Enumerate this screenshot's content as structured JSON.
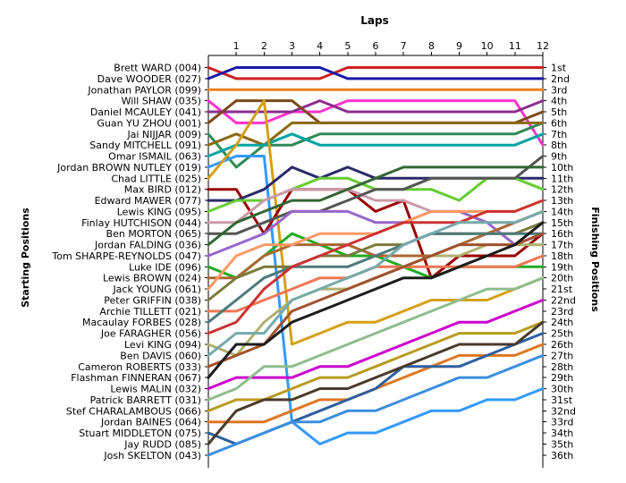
{
  "chart_data": {
    "type": "line",
    "title": "",
    "xlabel": "Laps",
    "ylabel_left": "Starting Positions",
    "ylabel_right": "Finishing Positions",
    "x_ticks": [
      "1",
      "2",
      "3",
      "4",
      "5",
      "6",
      "7",
      "8",
      "9",
      "10",
      "11",
      "12"
    ],
    "xlim": [
      0,
      12
    ],
    "ylim": [
      1,
      36
    ],
    "grid": false,
    "starting_labels": [
      "Brett WARD (004)",
      "Dave WOODER (027)",
      "Jonathan PAYLOR (099)",
      "Will SHAW (035)",
      "Daniel MCAULEY (041)",
      "Guan YU ZHOU (001)",
      "Jai NIJJAR (009)",
      "Sandy MITCHELL (091)",
      "Omar ISMAIL (063)",
      "Jordan BROWN NUTLEY (019)",
      "Chad LITTLE (025)",
      "Max BIRD (012)",
      "Edward MAWER (077)",
      "Lewis KING (095)",
      "Finlay HUTCHISON (044)",
      "Ben MORTON (065)",
      "Jordan FALDING (036)",
      "Tom SHARPE-REYNOLDS (047)",
      "Luke IDE (096)",
      "Lewis BROWN (024)",
      "Jack YOUNG (061)",
      "Peter GRIFFIN (038)",
      "Archie TILLETT (021)",
      "Macaulay FORBES (028)",
      "Joe FARAGHER (056)",
      "Levi KING (094)",
      "Ben DAVIS (060)",
      "Cameron ROBERTS (033)",
      "Flashman FINNERAN (067)",
      "Lewis MALIN (032)",
      "Patrick BARRETT (031)",
      "Stef CHARALAMBOUS (066)",
      "Jordan BAINES (064)",
      "Stuart MIDDLETON (075)",
      "Jay RUDD (085)",
      "Josh SKELTON (043)"
    ],
    "finishing_labels": [
      "1st",
      "2nd",
      "3rd",
      "4th",
      "5th",
      "6th",
      "7th",
      "8th",
      "9th",
      "10th",
      "11th",
      "12th",
      "13th",
      "14th",
      "15th",
      "16th",
      "17th",
      "18th",
      "19th",
      "20th",
      "21st",
      "22nd",
      "23rd",
      "24th",
      "25th",
      "26th",
      "27th",
      "28th",
      "29th",
      "30th",
      "31st",
      "32nd",
      "33rd",
      "34th",
      "35th",
      "36th"
    ],
    "series": [
      {
        "color": "#cc2222",
        "values": [
          1,
          2,
          2,
          2,
          2,
          1,
          1,
          1,
          1,
          1,
          1,
          1,
          1
        ]
      },
      {
        "color": "#1a1aa6",
        "values": [
          2,
          1,
          1,
          1,
          1,
          2,
          2,
          2,
          2,
          2,
          2,
          2,
          2
        ]
      },
      {
        "color": "#e8821e",
        "values": [
          3,
          3,
          3,
          3,
          3,
          3,
          3,
          3,
          3,
          3,
          3,
          3,
          3
        ]
      },
      {
        "color": "#ff33cc",
        "values": [
          4,
          6,
          6,
          5,
          5,
          4,
          4,
          4,
          4,
          4,
          4,
          4,
          8
        ]
      },
      {
        "color": "#8b2e8b",
        "values": [
          5,
          5,
          5,
          5,
          4,
          5,
          5,
          5,
          5,
          5,
          5,
          5,
          4
        ]
      },
      {
        "color": "#7a4a1a",
        "values": [
          6,
          4,
          4,
          4,
          6,
          6,
          6,
          6,
          6,
          6,
          6,
          6,
          5
        ]
      },
      {
        "color": "#2e8b57",
        "values": [
          7,
          10,
          8,
          8,
          7,
          7,
          7,
          7,
          7,
          7,
          7,
          7,
          6
        ]
      },
      {
        "color": "#8b6914",
        "values": [
          8,
          7,
          8,
          6,
          6,
          6,
          6,
          6,
          6,
          6,
          6,
          6,
          6
        ]
      },
      {
        "color": "#00a3a3",
        "values": [
          9,
          8,
          8,
          7,
          8,
          8,
          8,
          8,
          8,
          8,
          8,
          8,
          7
        ]
      },
      {
        "color": "#3399ff",
        "values": [
          10,
          9,
          9,
          33,
          35,
          34,
          34,
          33,
          32,
          32,
          31,
          31,
          30
        ]
      },
      {
        "color": "#d4a017",
        "values": [
          11,
          8,
          4,
          26,
          25,
          24,
          24,
          23,
          22,
          22,
          22,
          21,
          20
        ]
      },
      {
        "color": "#990000",
        "values": [
          12,
          12,
          16,
          12,
          12,
          12,
          14,
          13,
          20,
          18,
          18,
          18,
          16
        ]
      },
      {
        "color": "#2a2a6a",
        "values": [
          13,
          13,
          12,
          10,
          11,
          10,
          11,
          11,
          11,
          11,
          11,
          11,
          11
        ]
      },
      {
        "color": "#66cc33",
        "values": [
          14,
          13,
          13,
          12,
          11,
          11,
          12,
          12,
          12,
          13,
          11,
          11,
          12
        ]
      },
      {
        "color": "#cc99aa",
        "values": [
          15,
          15,
          13,
          12,
          12,
          12,
          13,
          13,
          14,
          14,
          15,
          15,
          14
        ]
      },
      {
        "color": "#555555",
        "values": [
          16,
          16,
          15,
          14,
          14,
          13,
          12,
          12,
          11,
          11,
          11,
          11,
          9
        ]
      },
      {
        "color": "#336633",
        "values": [
          17,
          15,
          14,
          13,
          13,
          12,
          11,
          10,
          10,
          10,
          10,
          10,
          10
        ]
      },
      {
        "color": "#9966cc",
        "values": [
          18,
          17,
          16,
          14,
          14,
          14,
          15,
          15,
          14,
          14,
          15,
          17,
          16
        ]
      },
      {
        "color": "#22aa22",
        "values": [
          19,
          20,
          18,
          16,
          17,
          18,
          18,
          19,
          20,
          19,
          19,
          19,
          19
        ]
      },
      {
        "color": "#aa6633",
        "values": [
          20,
          20,
          18,
          17,
          17,
          17,
          18,
          18,
          18,
          17,
          16,
          15,
          14
        ]
      },
      {
        "color": "#ff9966",
        "values": [
          21,
          18,
          17,
          17,
          16,
          16,
          16,
          15,
          14,
          14,
          14,
          14,
          13
        ]
      },
      {
        "color": "#7b7b3b",
        "values": [
          22,
          20,
          19,
          19,
          18,
          18,
          17,
          17,
          16,
          16,
          16,
          16,
          15
        ]
      },
      {
        "color": "#ee7755",
        "values": [
          23,
          23,
          22,
          21,
          20,
          20,
          19,
          19,
          19,
          19,
          19,
          19,
          18
        ]
      },
      {
        "color": "#4d7a7a",
        "values": [
          24,
          22,
          20,
          19,
          19,
          19,
          18,
          17,
          16,
          16,
          16,
          16,
          16
        ]
      },
      {
        "color": "#cc3333",
        "values": [
          25,
          24,
          21,
          19,
          18,
          17,
          16,
          15,
          15,
          15,
          14,
          14,
          13
        ]
      },
      {
        "color": "#b0b070",
        "values": [
          26,
          27,
          24,
          22,
          21,
          21,
          20,
          19,
          18,
          18,
          17,
          17,
          17
        ]
      },
      {
        "color": "#77aaaa",
        "values": [
          27,
          25,
          25,
          22,
          21,
          20,
          19,
          17,
          16,
          15,
          15,
          15,
          14
        ]
      },
      {
        "color": "#a0522d",
        "values": [
          28,
          27,
          26,
          23,
          22,
          21,
          20,
          19,
          18,
          17,
          17,
          17,
          16
        ]
      },
      {
        "color": "#1c1c1c",
        "values": [
          29,
          26,
          26,
          24,
          23,
          22,
          21,
          20,
          20,
          19,
          18,
          17,
          15
        ]
      },
      {
        "color": "#cc00cc",
        "values": [
          30,
          29,
          29,
          29,
          28,
          28,
          27,
          26,
          25,
          24,
          24,
          23,
          22
        ]
      },
      {
        "color": "#8fbc8f",
        "values": [
          31,
          30,
          28,
          28,
          27,
          26,
          25,
          24,
          23,
          22,
          21,
          21,
          20
        ]
      },
      {
        "color": "#b89c20",
        "values": [
          32,
          31,
          31,
          30,
          29,
          29,
          28,
          27,
          26,
          25,
          25,
          25,
          24
        ]
      },
      {
        "color": "#dd7722",
        "values": [
          33,
          33,
          33,
          32,
          31,
          31,
          30,
          29,
          28,
          27,
          27,
          27,
          26
        ]
      },
      {
        "color": "#2f5f9f",
        "values": [
          34,
          35,
          34,
          33,
          32,
          31,
          30,
          28,
          28,
          28,
          27,
          26,
          25
        ]
      },
      {
        "color": "#4b3b2b",
        "values": [
          35,
          32,
          31,
          31,
          30,
          30,
          29,
          28,
          27,
          26,
          26,
          26,
          24
        ]
      },
      {
        "color": "#3b8ede",
        "values": [
          36,
          35,
          34,
          33,
          33,
          32,
          32,
          31,
          30,
          29,
          29,
          28,
          27
        ]
      }
    ]
  }
}
